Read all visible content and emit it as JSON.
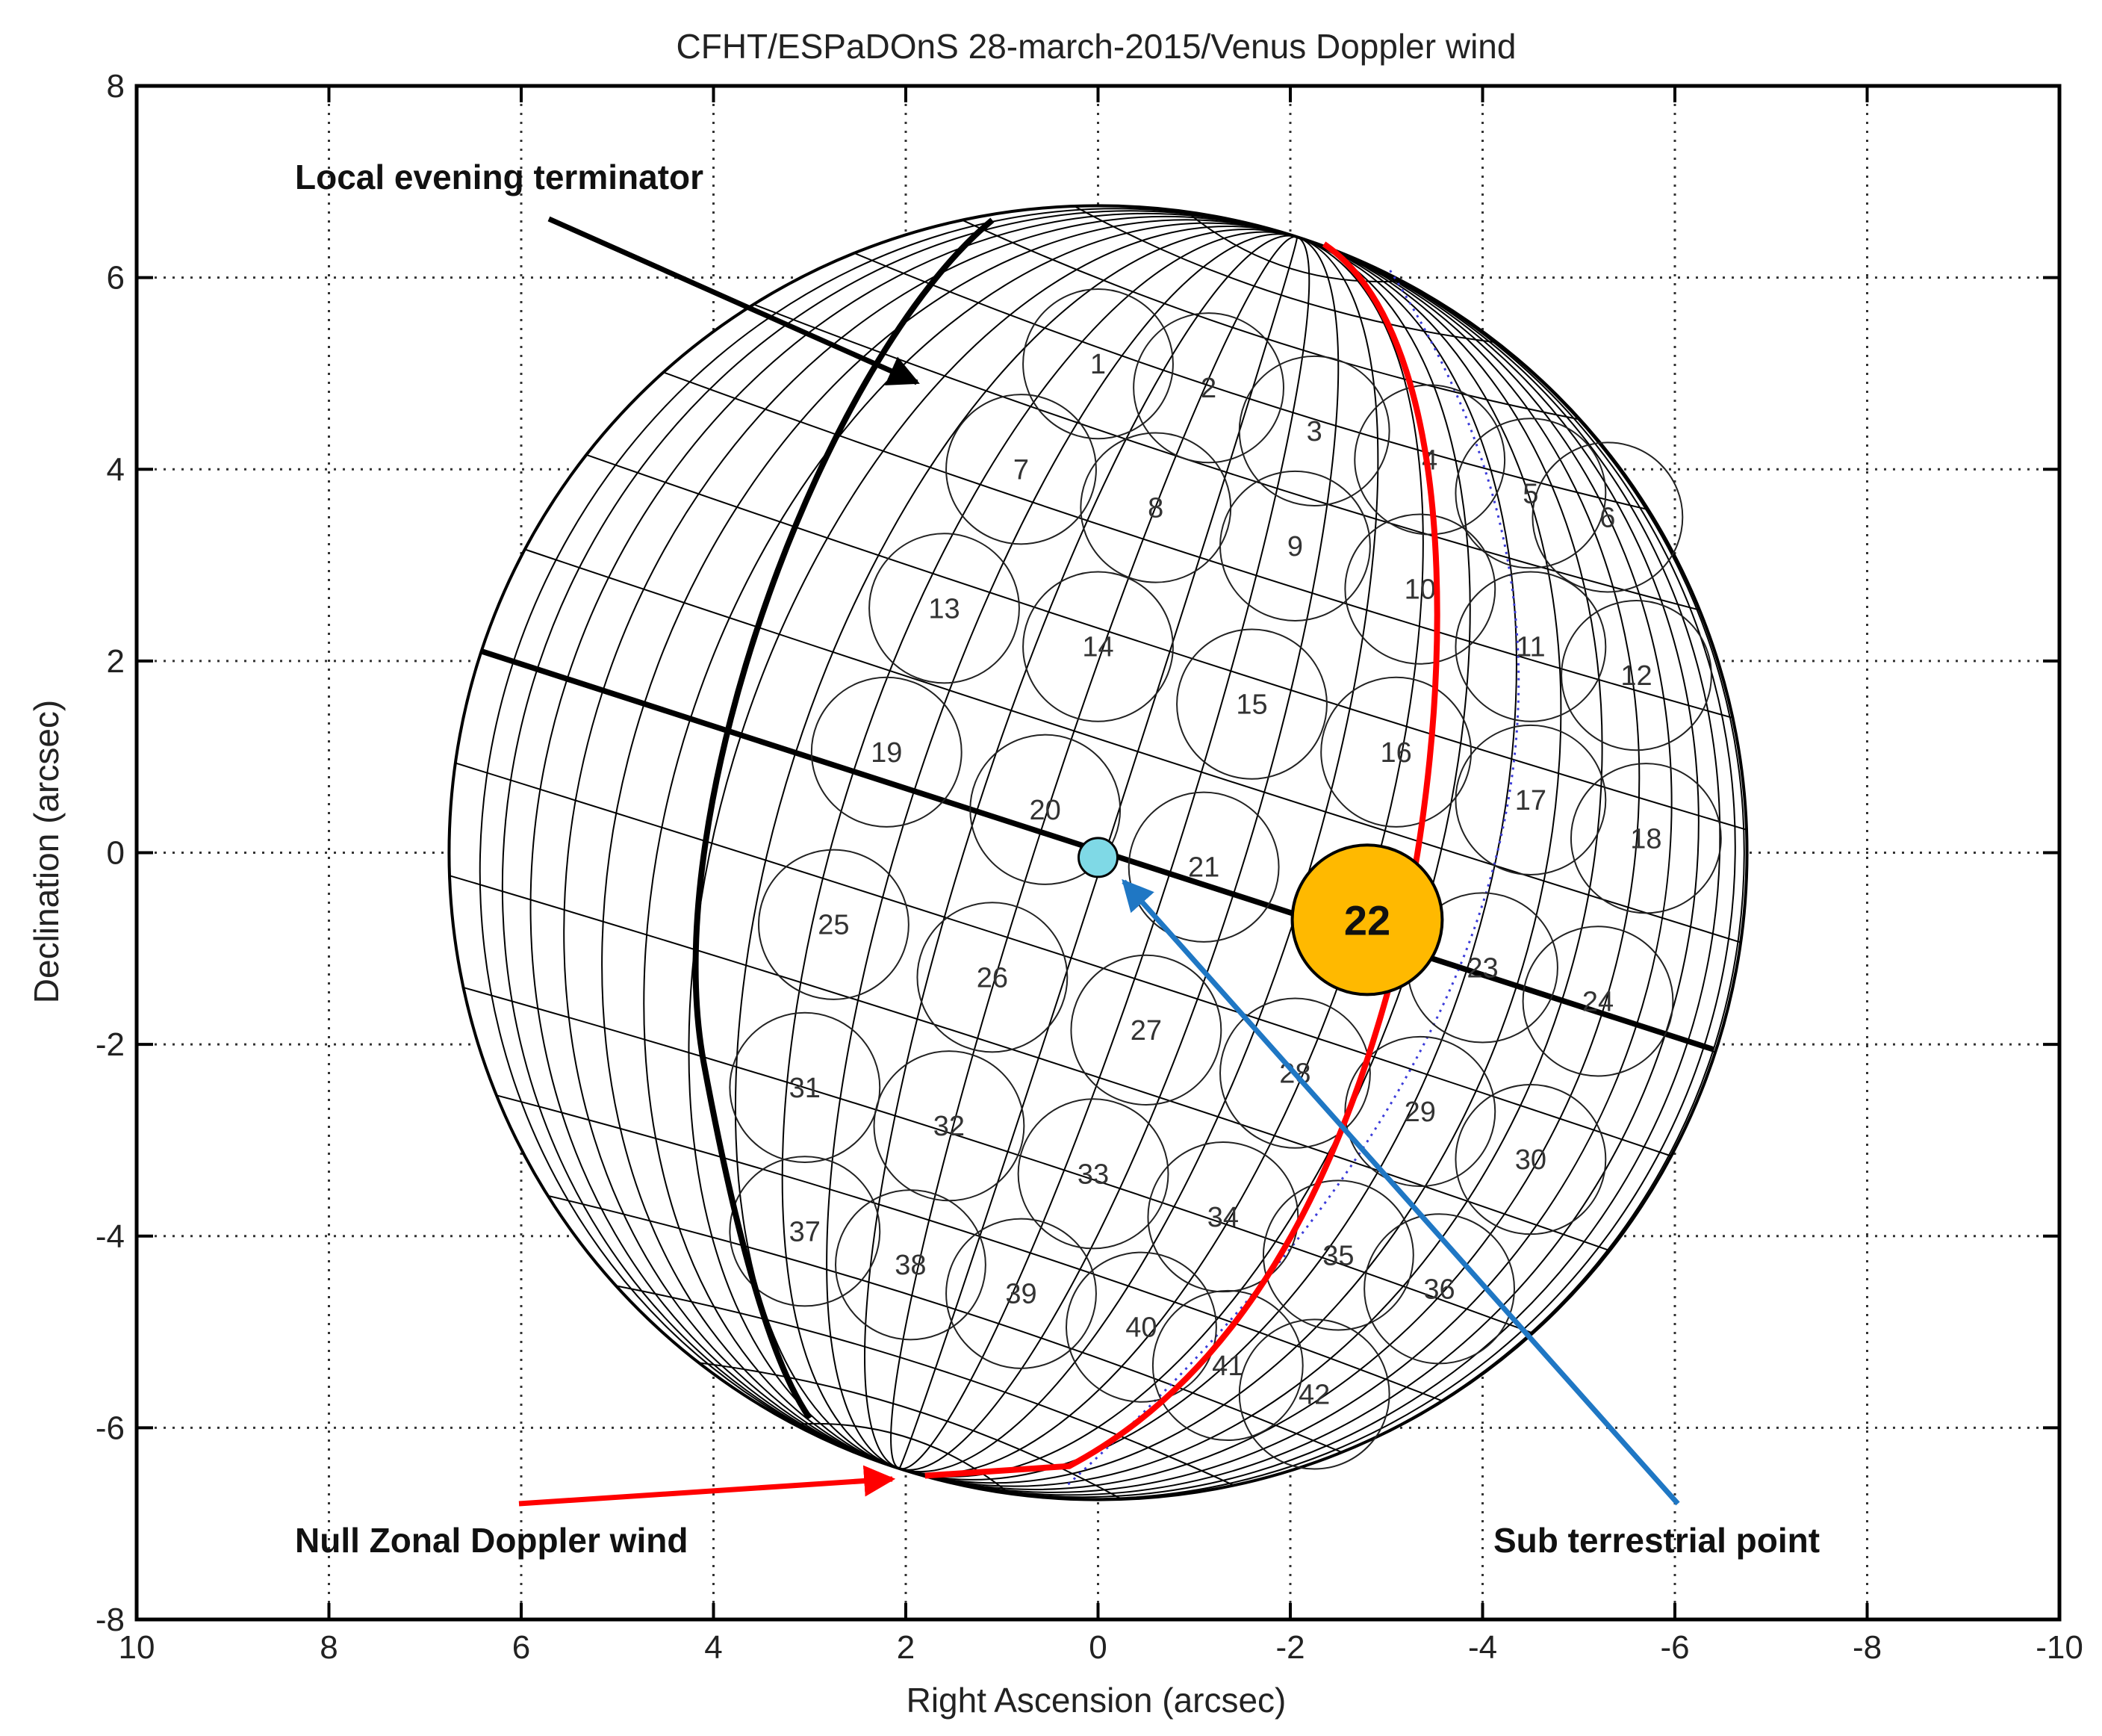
{
  "chart_data": {
    "type": "scatter",
    "title": "CFHT/ESPaDOnS 28-march-2015/Venus Doppler wind",
    "xlabel": "Right Ascension (arcsec)",
    "ylabel": "Declination (arcsec)",
    "xlim": [
      10,
      -10
    ],
    "ylim": [
      -8,
      8
    ],
    "xticks": [
      "10",
      "8",
      "6",
      "4",
      "2",
      "0",
      "-2",
      "-4",
      "-6",
      "-8",
      "-10"
    ],
    "yticks": [
      "8",
      "6",
      "4",
      "2",
      "0",
      "-2",
      "-4",
      "-6",
      "-8"
    ],
    "grid": true,
    "planet": {
      "center": [
        0,
        0
      ],
      "radius": 6.75
    },
    "equator": {
      "from": [
        6.4,
        2.1
      ],
      "to": [
        -6.4,
        -2.05
      ]
    },
    "spots": {
      "radius": 0.78,
      "points": [
        {
          "label": "1",
          "x": 0.0,
          "y": 5.1
        },
        {
          "label": "2",
          "x": -1.15,
          "y": 4.85
        },
        {
          "label": "3",
          "x": -2.25,
          "y": 4.4
        },
        {
          "label": "4",
          "x": -3.45,
          "y": 4.1
        },
        {
          "label": "5",
          "x": -4.5,
          "y": 3.75
        },
        {
          "label": "6",
          "x": -5.3,
          "y": 3.5
        },
        {
          "label": "7",
          "x": 0.8,
          "y": 4.0
        },
        {
          "label": "8",
          "x": -0.6,
          "y": 3.6
        },
        {
          "label": "9",
          "x": -2.05,
          "y": 3.2
        },
        {
          "label": "10",
          "x": -3.35,
          "y": 2.75
        },
        {
          "label": "11",
          "x": -4.5,
          "y": 2.15
        },
        {
          "label": "12",
          "x": -5.6,
          "y": 1.85
        },
        {
          "label": "13",
          "x": 1.6,
          "y": 2.55
        },
        {
          "label": "14",
          "x": 0.0,
          "y": 2.15
        },
        {
          "label": "15",
          "x": -1.6,
          "y": 1.55
        },
        {
          "label": "16",
          "x": -3.1,
          "y": 1.05
        },
        {
          "label": "17",
          "x": -4.5,
          "y": 0.55
        },
        {
          "label": "18",
          "x": -5.7,
          "y": 0.15
        },
        {
          "label": "19",
          "x": 2.2,
          "y": 1.05
        },
        {
          "label": "20",
          "x": 0.55,
          "y": 0.45
        },
        {
          "label": "21",
          "x": -1.1,
          "y": -0.15
        },
        {
          "label": "22",
          "x": -2.8,
          "y": -0.7
        },
        {
          "label": "23",
          "x": -4.0,
          "y": -1.2
        },
        {
          "label": "24",
          "x": -5.2,
          "y": -1.55
        },
        {
          "label": "25",
          "x": 2.75,
          "y": -0.75
        },
        {
          "label": "26",
          "x": 1.1,
          "y": -1.3
        },
        {
          "label": "27",
          "x": -0.5,
          "y": -1.85
        },
        {
          "label": "28",
          "x": -2.05,
          "y": -2.3
        },
        {
          "label": "29",
          "x": -3.35,
          "y": -2.7
        },
        {
          "label": "30",
          "x": -4.5,
          "y": -3.2
        },
        {
          "label": "31",
          "x": 3.05,
          "y": -2.45
        },
        {
          "label": "32",
          "x": 1.55,
          "y": -2.85
        },
        {
          "label": "33",
          "x": 0.05,
          "y": -3.35
        },
        {
          "label": "34",
          "x": -1.3,
          "y": -3.8
        },
        {
          "label": "35",
          "x": -2.5,
          "y": -4.2
        },
        {
          "label": "36",
          "x": -3.55,
          "y": -4.55
        },
        {
          "label": "37",
          "x": 3.05,
          "y": -3.95
        },
        {
          "label": "38",
          "x": 1.95,
          "y": -4.3
        },
        {
          "label": "39",
          "x": 0.8,
          "y": -4.6
        },
        {
          "label": "40",
          "x": -0.45,
          "y": -4.95
        },
        {
          "label": "41",
          "x": -1.35,
          "y": -5.35
        },
        {
          "label": "42",
          "x": -2.25,
          "y": -5.65
        }
      ]
    },
    "sub_terrestrial_point": {
      "x": 0.0,
      "y": -0.05
    },
    "highlighted_spot": {
      "label": "22",
      "x": -2.8,
      "y": -0.7,
      "radius": 0.78
    },
    "annotations": [
      {
        "text": "Local evening terminator",
        "color": "#000000"
      },
      {
        "text": "Null Zonal Doppler wind",
        "color": "#ff0000"
      },
      {
        "text": "Sub terrestrial point",
        "color": "#1f77c4"
      }
    ]
  },
  "colors": {
    "terminator": "#000000",
    "null_wind": "#ff0000",
    "sub_terrestrial_marker": "#7fd9e6",
    "sub_terrestrial_arrow": "#1f77c4",
    "highlight_fill": "#ffb900",
    "grid": "#333333",
    "limb_dotted": "#3b3bd9"
  }
}
